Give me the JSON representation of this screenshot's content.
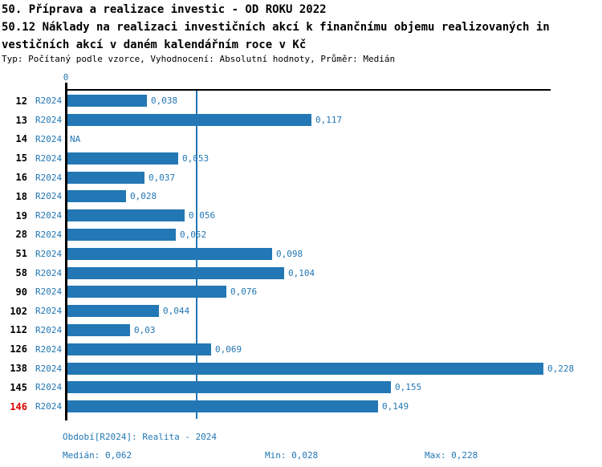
{
  "header": {
    "line1": "50. Příprava a realizace investic - OD ROKU 2022",
    "line2": "50.12 Náklady na realizaci investičních akcí k finančnímu objemu realizovaných in",
    "line3": "vestičních akcí v daném kalendářním roce v Kč",
    "subtitle": "Typ: Počítaný podle vzorce, Vyhodnocení: Absolutní hodnoty, Průměr: Medián"
  },
  "chart_data": {
    "type": "bar",
    "orientation": "horizontal",
    "title": "50.12 Náklady na realizaci investičních akcí k finančnímu objemu realizovaných investičních akcí v daném kalendářním roce v Kč",
    "xlabel": "",
    "ylabel": "",
    "axis": {
      "zero_label": "0",
      "min": 0,
      "max": 0.2305,
      "grid": false
    },
    "median_line_value": 0.062,
    "rows": [
      {
        "id": "12",
        "period": "R2024",
        "value": 0.038,
        "label": "0,038",
        "highlight": false
      },
      {
        "id": "13",
        "period": "R2024",
        "value": 0.117,
        "label": "0,117",
        "highlight": false
      },
      {
        "id": "14",
        "period": "R2024",
        "value": null,
        "label": "NA",
        "highlight": false
      },
      {
        "id": "15",
        "period": "R2024",
        "value": 0.053,
        "label": "0,053",
        "highlight": false
      },
      {
        "id": "16",
        "period": "R2024",
        "value": 0.037,
        "label": "0,037",
        "highlight": false
      },
      {
        "id": "18",
        "period": "R2024",
        "value": 0.028,
        "label": "0,028",
        "highlight": false
      },
      {
        "id": "19",
        "period": "R2024",
        "value": 0.056,
        "label": "0,056",
        "highlight": false
      },
      {
        "id": "28",
        "period": "R2024",
        "value": 0.052,
        "label": "0,052",
        "highlight": false
      },
      {
        "id": "51",
        "period": "R2024",
        "value": 0.098,
        "label": "0,098",
        "highlight": false
      },
      {
        "id": "58",
        "period": "R2024",
        "value": 0.104,
        "label": "0,104",
        "highlight": false
      },
      {
        "id": "90",
        "period": "R2024",
        "value": 0.076,
        "label": "0,076",
        "highlight": false
      },
      {
        "id": "102",
        "period": "R2024",
        "value": 0.044,
        "label": "0,044",
        "highlight": false
      },
      {
        "id": "112",
        "period": "R2024",
        "value": 0.03,
        "label": "0,03",
        "highlight": false
      },
      {
        "id": "126",
        "period": "R2024",
        "value": 0.069,
        "label": "0,069",
        "highlight": false
      },
      {
        "id": "138",
        "period": "R2024",
        "value": 0.228,
        "label": "0,228",
        "highlight": false
      },
      {
        "id": "145",
        "period": "R2024",
        "value": 0.155,
        "label": "0,155",
        "highlight": false
      },
      {
        "id": "146",
        "period": "R2024",
        "value": 0.149,
        "label": "0,149",
        "highlight": true
      }
    ],
    "colors": {
      "bar": "#2277b4",
      "label_text": "#2277b4",
      "median_line": "#2277b4",
      "highlight_row": "#dd0000",
      "axis": "#000000",
      "title_text": "#000000"
    },
    "legend": null
  },
  "footer": {
    "period_info": "Období[R2024]: Realita - 2024",
    "median": "Medián: 0,062",
    "min": "Min: 0,028",
    "max": "Max: 0,228"
  }
}
